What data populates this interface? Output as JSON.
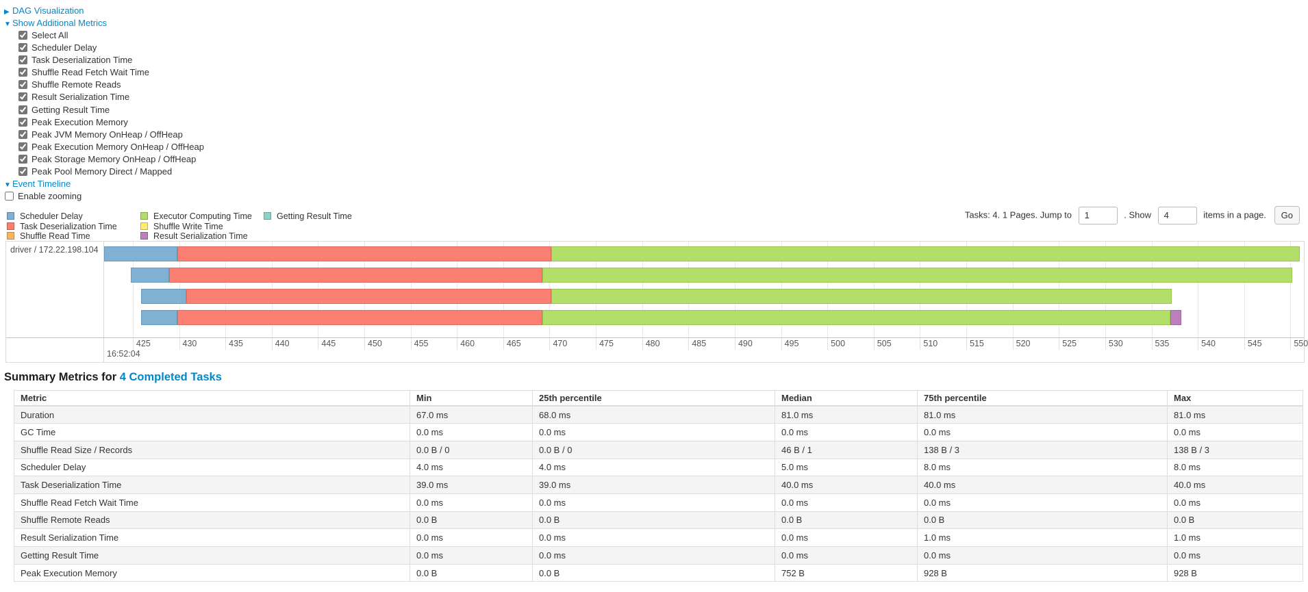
{
  "links": {
    "dag": "DAG Visualization",
    "additional_metrics": "Show Additional Metrics",
    "event_timeline": "Event Timeline"
  },
  "metrics_checkboxes": [
    {
      "label": "Select All",
      "checked": true
    },
    {
      "label": "Scheduler Delay",
      "checked": true
    },
    {
      "label": "Task Deserialization Time",
      "checked": true
    },
    {
      "label": "Shuffle Read Fetch Wait Time",
      "checked": true
    },
    {
      "label": "Shuffle Remote Reads",
      "checked": true
    },
    {
      "label": "Result Serialization Time",
      "checked": true
    },
    {
      "label": "Getting Result Time",
      "checked": true
    },
    {
      "label": "Peak Execution Memory",
      "checked": true
    },
    {
      "label": "Peak JVM Memory OnHeap / OffHeap",
      "checked": true
    },
    {
      "label": "Peak Execution Memory OnHeap / OffHeap",
      "checked": true
    },
    {
      "label": "Peak Storage Memory OnHeap / OffHeap",
      "checked": true
    },
    {
      "label": "Peak Pool Memory Direct / Mapped",
      "checked": true
    }
  ],
  "enable_zooming": {
    "label": "Enable zooming",
    "checked": false
  },
  "legend": {
    "colors": {
      "scheduler_delay": {
        "fill": "#80B1D3",
        "border": "#6898BC"
      },
      "task_deserialization": {
        "fill": "#FB8072",
        "border": "#DC6A5E"
      },
      "shuffle_read": {
        "fill": "#FDB462",
        "border": "#DE9A4C"
      },
      "executor_computing": {
        "fill": "#B3DE69",
        "border": "#98C552"
      },
      "shuffle_write": {
        "fill": "#FFED6F",
        "border": "#E0D058"
      },
      "result_serialization": {
        "fill": "#BC80BD",
        "border": "#A369A4"
      },
      "getting_result": {
        "fill": "#8DD3C7",
        "border": "#74BAAE"
      }
    },
    "columns": [
      [
        {
          "key": "scheduler_delay",
          "label": "Scheduler Delay"
        },
        {
          "key": "task_deserialization",
          "label": "Task Deserialization Time"
        },
        {
          "key": "shuffle_read",
          "label": "Shuffle Read Time"
        }
      ],
      [
        {
          "key": "executor_computing",
          "label": "Executor Computing Time"
        },
        {
          "key": "shuffle_write",
          "label": "Shuffle Write Time"
        },
        {
          "key": "result_serialization",
          "label": "Result Serialization Time"
        }
      ],
      [
        {
          "key": "getting_result",
          "label": "Getting Result Time"
        }
      ]
    ]
  },
  "pagination": {
    "tasks_text": "Tasks: 4. 1 Pages. Jump to",
    "jump_value": "1",
    "show_text": ". Show",
    "show_value": "4",
    "items_text": "items in a page.",
    "go_label": "Go"
  },
  "timeline": {
    "group_label": "driver / 172.22.198.104",
    "axis": {
      "tick_start": 425,
      "tick_end": 550,
      "tick_step": 5,
      "domain_min": 421.9,
      "domain_max": 551.6,
      "sub_label": "16:52:04"
    },
    "tasks": [
      {
        "segments": [
          {
            "key": "scheduler_delay",
            "start": 421.9,
            "end": 429.8
          },
          {
            "key": "task_deserialization",
            "start": 429.8,
            "end": 470.2
          },
          {
            "key": "executor_computing",
            "start": 470.2,
            "end": 551.0
          }
        ]
      },
      {
        "segments": [
          {
            "key": "scheduler_delay",
            "start": 424.8,
            "end": 428.9
          },
          {
            "key": "task_deserialization",
            "start": 428.9,
            "end": 469.2
          },
          {
            "key": "executor_computing",
            "start": 469.2,
            "end": 550.2
          }
        ]
      },
      {
        "segments": [
          {
            "key": "scheduler_delay",
            "start": 425.9,
            "end": 430.8
          },
          {
            "key": "task_deserialization",
            "start": 430.8,
            "end": 470.2
          },
          {
            "key": "executor_computing",
            "start": 470.2,
            "end": 537.2
          }
        ]
      },
      {
        "segments": [
          {
            "key": "scheduler_delay",
            "start": 425.9,
            "end": 429.8
          },
          {
            "key": "task_deserialization",
            "start": 429.8,
            "end": 469.2
          },
          {
            "key": "executor_computing",
            "start": 469.2,
            "end": 537.0
          },
          {
            "key": "result_serialization",
            "start": 537.0,
            "end": 538.2
          }
        ]
      }
    ]
  },
  "summary": {
    "title": "Summary Metrics for ",
    "tasks_link": "4 Completed Tasks",
    "table": {
      "columns": [
        "Metric",
        "Min",
        "25th percentile",
        "Median",
        "75th percentile",
        "Max"
      ],
      "rows": [
        [
          "Duration",
          "67.0 ms",
          "68.0 ms",
          "81.0 ms",
          "81.0 ms",
          "81.0 ms"
        ],
        [
          "GC Time",
          "0.0 ms",
          "0.0 ms",
          "0.0 ms",
          "0.0 ms",
          "0.0 ms"
        ],
        [
          "Shuffle Read Size / Records",
          "0.0 B / 0",
          "0.0 B / 0",
          "46 B / 1",
          "138 B / 3",
          "138 B / 3"
        ],
        [
          "Scheduler Delay",
          "4.0 ms",
          "4.0 ms",
          "5.0 ms",
          "8.0 ms",
          "8.0 ms"
        ],
        [
          "Task Deserialization Time",
          "39.0 ms",
          "39.0 ms",
          "40.0 ms",
          "40.0 ms",
          "40.0 ms"
        ],
        [
          "Shuffle Read Fetch Wait Time",
          "0.0 ms",
          "0.0 ms",
          "0.0 ms",
          "0.0 ms",
          "0.0 ms"
        ],
        [
          "Shuffle Remote Reads",
          "0.0 B",
          "0.0 B",
          "0.0 B",
          "0.0 B",
          "0.0 B"
        ],
        [
          "Result Serialization Time",
          "0.0 ms",
          "0.0 ms",
          "0.0 ms",
          "1.0 ms",
          "1.0 ms"
        ],
        [
          "Getting Result Time",
          "0.0 ms",
          "0.0 ms",
          "0.0 ms",
          "0.0 ms",
          "0.0 ms"
        ],
        [
          "Peak Execution Memory",
          "0.0 B",
          "0.0 B",
          "752 B",
          "928 B",
          "928 B"
        ]
      ]
    }
  }
}
